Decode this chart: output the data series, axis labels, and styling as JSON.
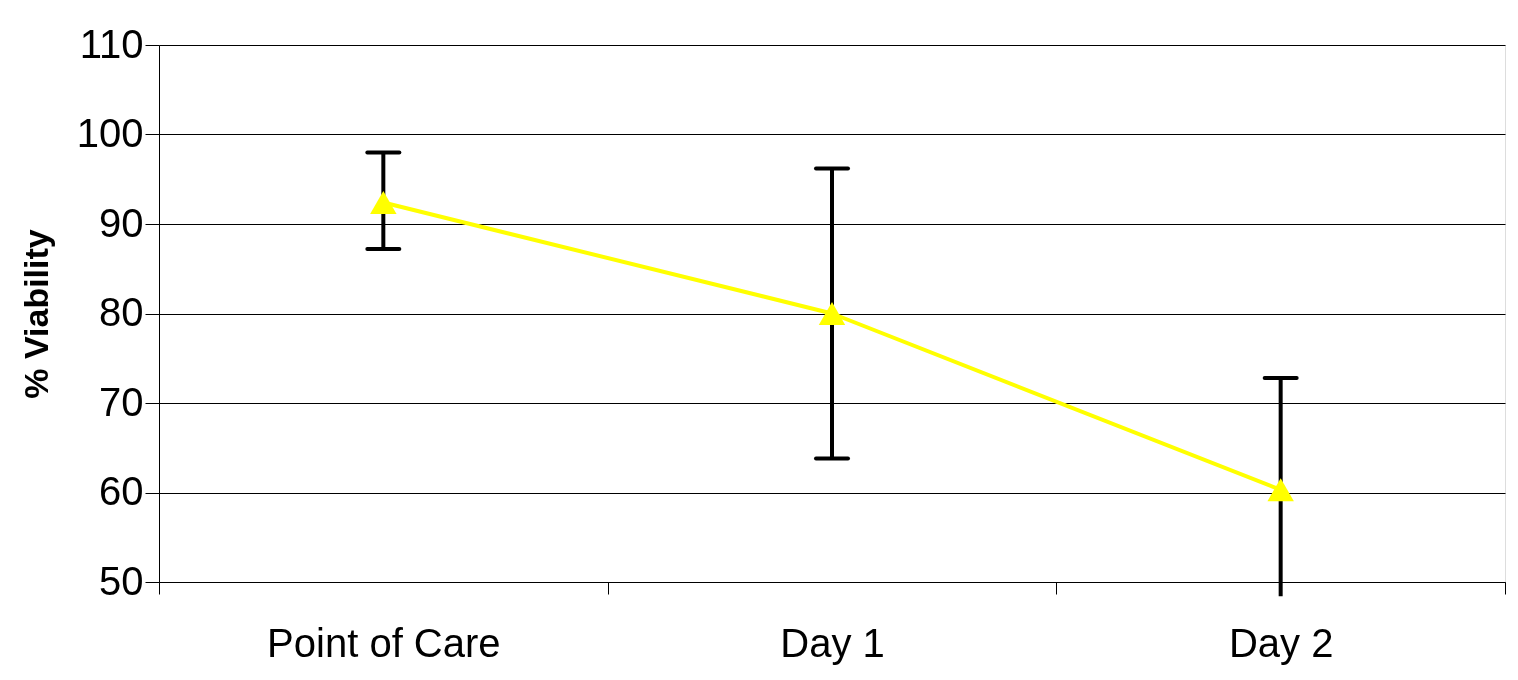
{
  "chart_data": {
    "type": "line",
    "ylabel": "% Viability",
    "categories": [
      "Point of Care",
      "Day 1",
      "Day 2"
    ],
    "series": [
      {
        "color": "#ffff00",
        "values": [
          92.4,
          80.0,
          60.3
        ],
        "errors": [
          [
            87.2,
            98.0
          ],
          [
            63.8,
            96.2
          ],
          [
            48.4,
            72.8
          ]
        ]
      }
    ],
    "ylim": [
      50,
      110
    ],
    "yticks": [
      50,
      60,
      70,
      80,
      90,
      100,
      110
    ],
    "grid": "y",
    "marker": "triangle",
    "line_style": "solid"
  }
}
